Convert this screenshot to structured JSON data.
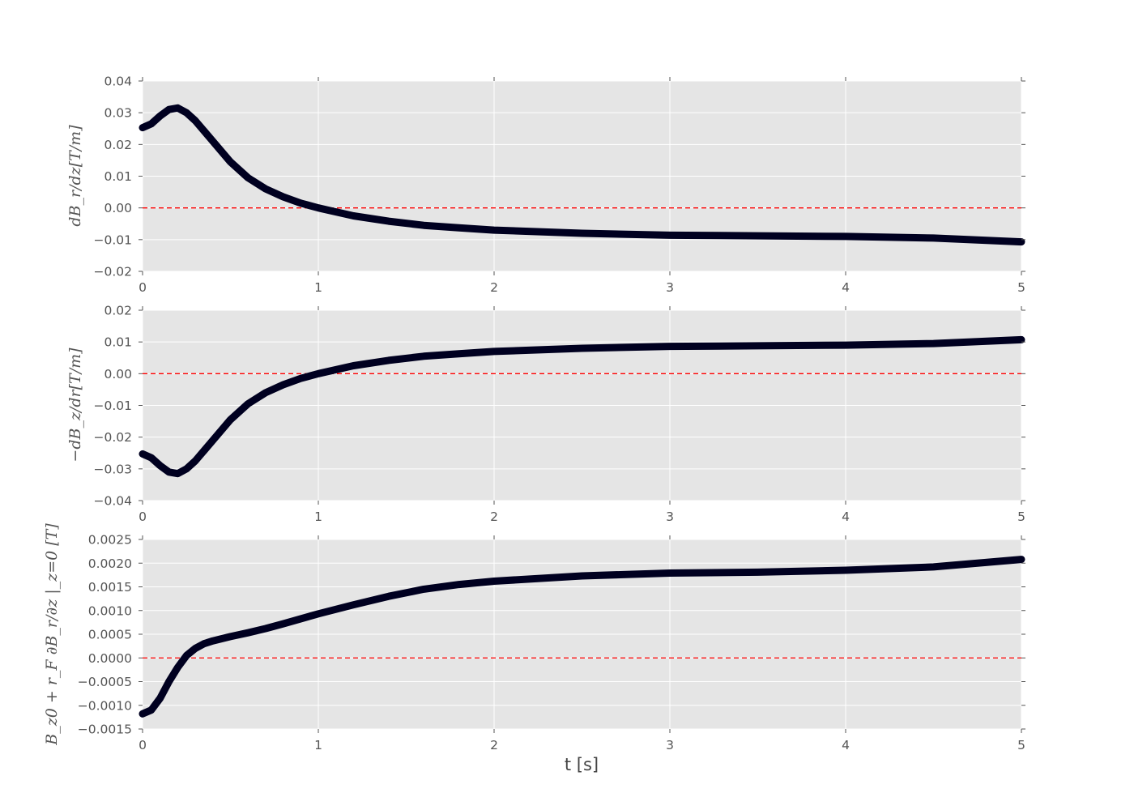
{
  "chart_data": [
    {
      "type": "line",
      "ylabel": "dB_r/dz[T/m]",
      "xlim": [
        0,
        5
      ],
      "ylim": [
        -0.02,
        0.04
      ],
      "xticks": [
        "0",
        "1",
        "2",
        "3",
        "4",
        "5"
      ],
      "yticks": [
        "0.04",
        "0.03",
        "0.02",
        "0.01",
        "0.00",
        "−0.01",
        "−0.02"
      ],
      "reference_line": 0.0,
      "series": [
        {
          "x": [
            0,
            0.05,
            0.1,
            0.15,
            0.2,
            0.25,
            0.3,
            0.4,
            0.5,
            0.6,
            0.7,
            0.8,
            0.9,
            1.0,
            1.2,
            1.4,
            1.6,
            1.8,
            2.0,
            2.5,
            3.0,
            3.5,
            4.0,
            4.5,
            5.0
          ],
          "y": [
            0.0253,
            0.0265,
            0.029,
            0.031,
            0.0315,
            0.03,
            0.0275,
            0.021,
            0.0145,
            0.0095,
            0.006,
            0.0035,
            0.0015,
            0.0,
            -0.0025,
            -0.0042,
            -0.0055,
            -0.0063,
            -0.007,
            -0.008,
            -0.0086,
            -0.0088,
            -0.009,
            -0.0095,
            -0.0107
          ]
        }
      ]
    },
    {
      "type": "line",
      "ylabel": "−dB_z/dr[T/m]",
      "xlim": [
        0,
        5
      ],
      "ylim": [
        -0.04,
        0.02
      ],
      "xticks": [
        "0",
        "1",
        "2",
        "3",
        "4",
        "5"
      ],
      "yticks": [
        "0.02",
        "0.01",
        "0.00",
        "−0.01",
        "−0.02",
        "−0.03",
        "−0.04"
      ],
      "reference_line": 0.0,
      "series": [
        {
          "x": [
            0,
            0.05,
            0.1,
            0.15,
            0.2,
            0.25,
            0.3,
            0.4,
            0.5,
            0.6,
            0.7,
            0.8,
            0.9,
            1.0,
            1.2,
            1.4,
            1.6,
            1.8,
            2.0,
            2.5,
            3.0,
            3.5,
            4.0,
            4.5,
            5.0
          ],
          "y": [
            -0.0253,
            -0.0265,
            -0.029,
            -0.031,
            -0.0315,
            -0.03,
            -0.0275,
            -0.021,
            -0.0145,
            -0.0095,
            -0.006,
            -0.0035,
            -0.0015,
            0.0,
            0.0025,
            0.0042,
            0.0055,
            0.0063,
            0.007,
            0.008,
            0.0086,
            0.0088,
            0.009,
            0.0095,
            0.0107
          ]
        }
      ]
    },
    {
      "type": "line",
      "ylabel": "B_z0 + r_F ∂B_r/∂z |_z=0 [T]",
      "xlabel": "t [s]",
      "xlim": [
        0,
        5
      ],
      "ylim": [
        -0.0015,
        0.0025
      ],
      "xticks": [
        "0",
        "1",
        "2",
        "3",
        "4",
        "5"
      ],
      "yticks": [
        "0.0025",
        "0.0020",
        "0.0015",
        "0.0010",
        "0.0005",
        "0.0000",
        "−0.0005",
        "−0.0010",
        "−0.0015"
      ],
      "reference_line": 0.0,
      "series": [
        {
          "x": [
            0,
            0.05,
            0.1,
            0.15,
            0.2,
            0.25,
            0.3,
            0.35,
            0.4,
            0.5,
            0.6,
            0.7,
            0.8,
            1.0,
            1.2,
            1.4,
            1.6,
            1.8,
            2.0,
            2.5,
            3.0,
            3.5,
            4.0,
            4.5,
            5.0
          ],
          "y": [
            -0.00118,
            -0.0011,
            -0.00085,
            -0.0005,
            -0.0002,
            5e-05,
            0.0002,
            0.0003,
            0.00036,
            0.00045,
            0.00053,
            0.00062,
            0.00072,
            0.00093,
            0.00112,
            0.0013,
            0.00145,
            0.00155,
            0.00162,
            0.00173,
            0.00179,
            0.00181,
            0.00185,
            0.00192,
            0.00208
          ]
        }
      ]
    }
  ]
}
